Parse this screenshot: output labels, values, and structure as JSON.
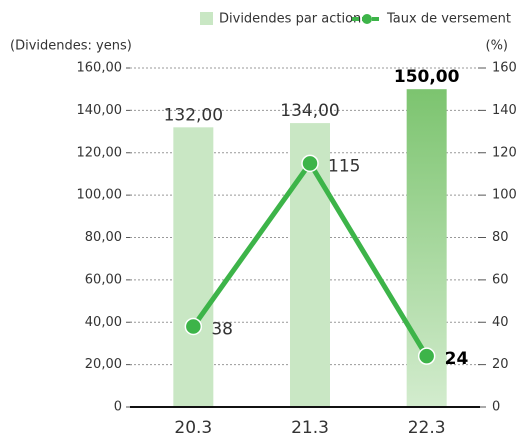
{
  "chart_data": {
    "type": "bar",
    "categories": [
      "20.3",
      "21.3",
      "22.3"
    ],
    "series": [
      {
        "name": "Dividendes par action",
        "type": "bar",
        "color": "#c9e7c4",
        "values": [
          132,
          134,
          150
        ],
        "value_labels": [
          "132,00",
          "134,00",
          "150,00"
        ]
      },
      {
        "name": "Taux de versement",
        "type": "line",
        "axis": "y2",
        "color": "#3db449",
        "values": [
          38,
          115,
          24
        ]
      }
    ],
    "ylabel": "(Dividendes: yens)",
    "y2label": "(%)",
    "ylim": [
      0,
      160
    ],
    "yticks": [
      {
        "value": 0,
        "label": "0"
      },
      {
        "value": 20,
        "label": "20,00"
      },
      {
        "value": 40,
        "label": "40,00"
      },
      {
        "value": 60,
        "label": "60,00"
      },
      {
        "value": 80,
        "label": "80,00"
      },
      {
        "value": 100,
        "label": "100,00"
      },
      {
        "value": 120,
        "label": "120,00"
      },
      {
        "value": 140,
        "label": "140,00"
      },
      {
        "value": 160,
        "label": "160,00"
      }
    ],
    "y2lim": [
      0,
      160
    ],
    "y2ticks": [
      0,
      20,
      40,
      60,
      80,
      100,
      120,
      140,
      160
    ],
    "grid": true,
    "legend": "top-right"
  }
}
